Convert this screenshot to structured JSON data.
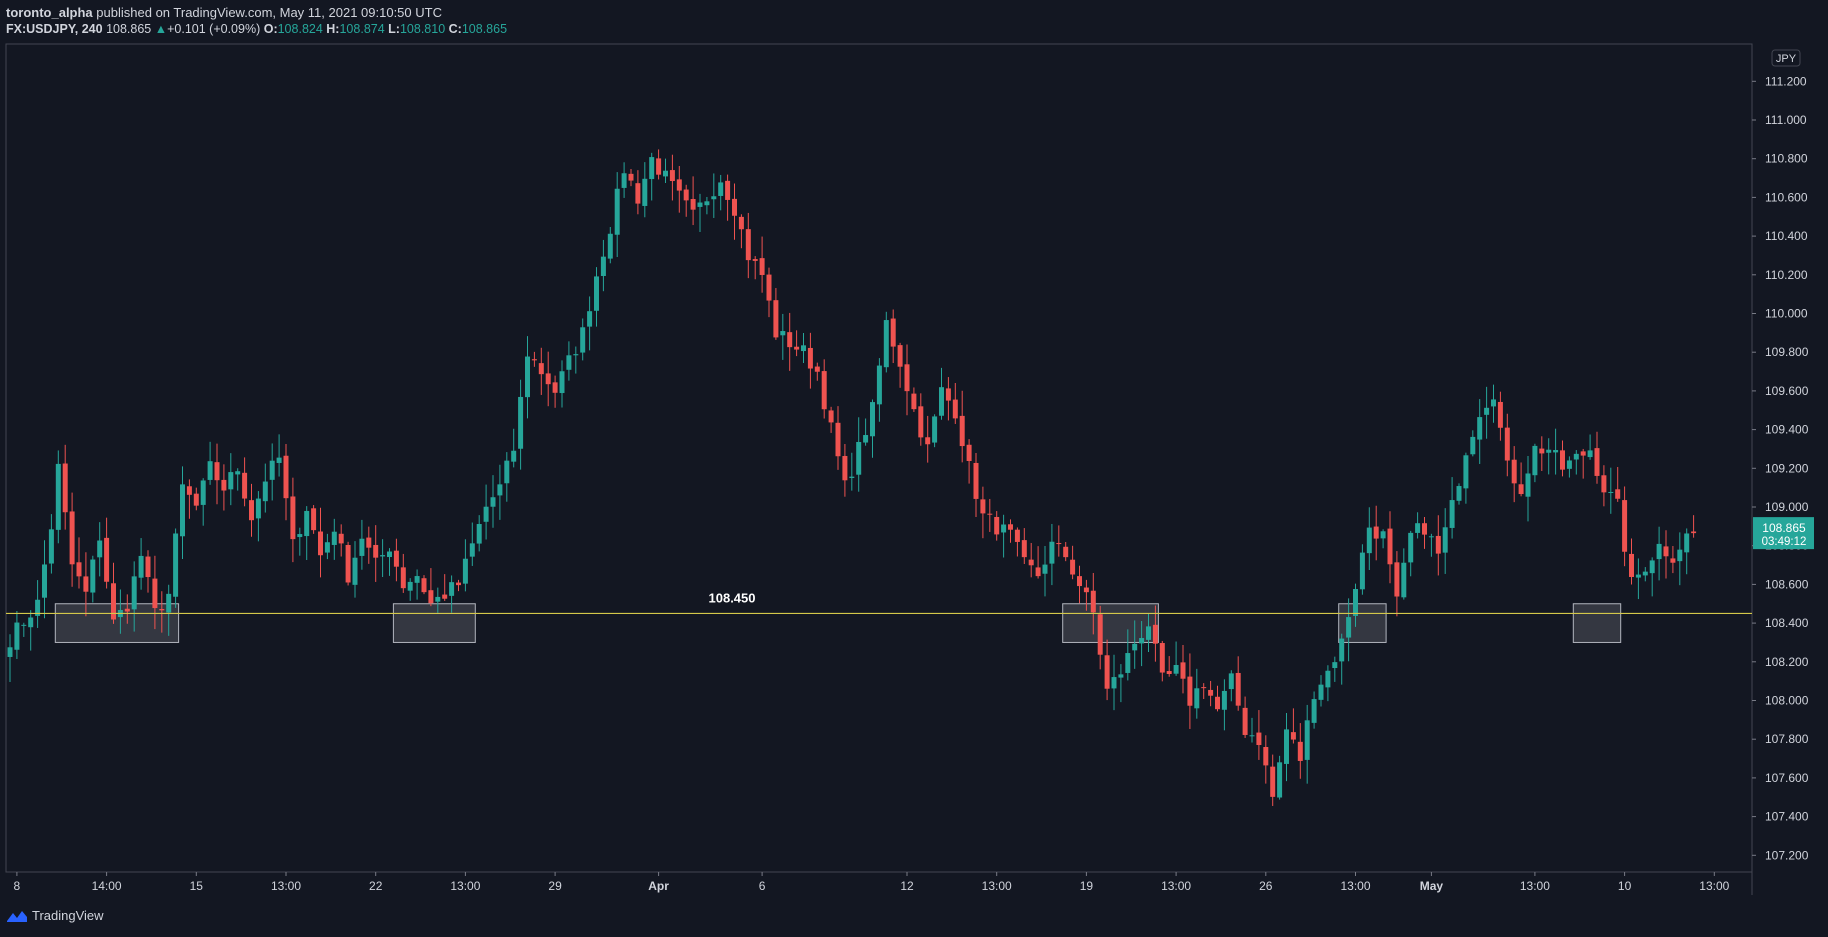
{
  "header": {
    "author": "toronto_alpha",
    "published_text": "published on TradingView.com, May 11, 2021 09:10:50 UTC",
    "symbol": "FX:USDJPY, 240",
    "last_price": "108.865",
    "change_arrow": "▲",
    "change": "+0.101 (+0.09%)",
    "o_label": "O:",
    "o_value": "108.824",
    "h_label": "H:",
    "h_value": "108.874",
    "l_label": "L:",
    "l_value": "108.810",
    "c_label": "C:",
    "c_value": "108.865"
  },
  "footer": {
    "brand": "TradingView",
    "logo_icon": "tradingview-logo-icon"
  },
  "colors": {
    "background": "#131722",
    "up": "#26a69a",
    "down": "#ef5350",
    "level_line": "#d4c84a",
    "box_stroke": "#b2b5be",
    "box_fill": "#ffffff",
    "axis": "#434651"
  },
  "chart_data": {
    "type": "candlestick",
    "symbol": "FX:USDJPY",
    "interval": "240",
    "currency_label": "JPY",
    "ylim": [
      107.1,
      111.3
    ],
    "y_ticks": [
      "107.200",
      "107.400",
      "107.600",
      "107.800",
      "108.000",
      "108.200",
      "108.400",
      "108.600",
      "108.800",
      "109.000",
      "109.200",
      "109.400",
      "109.600",
      "109.800",
      "110.000",
      "110.200",
      "110.400",
      "110.600",
      "110.800",
      "111.000",
      "111.200"
    ],
    "x_ticks": [
      {
        "label": "8",
        "i": 1
      },
      {
        "label": "14:00",
        "i": 14
      },
      {
        "label": "15",
        "i": 27
      },
      {
        "label": "13:00",
        "i": 40
      },
      {
        "label": "22",
        "i": 53
      },
      {
        "label": "13:00",
        "i": 66
      },
      {
        "label": "29",
        "i": 79
      },
      {
        "label": "Apr",
        "i": 94
      },
      {
        "label": "6",
        "i": 109
      },
      {
        "label": "12",
        "i": 130
      },
      {
        "label": "13:00",
        "i": 143
      },
      {
        "label": "19",
        "i": 156
      },
      {
        "label": "13:00",
        "i": 169
      },
      {
        "label": "26",
        "i": 182
      },
      {
        "label": "13:00",
        "i": 195
      },
      {
        "label": "May",
        "i": 206
      },
      {
        "label": "13:00",
        "i": 221
      },
      {
        "label": "10",
        "i": 234
      },
      {
        "label": "13:00",
        "i": 247
      }
    ],
    "horizontal_level": {
      "value": 108.45,
      "label": "108.450"
    },
    "support_boxes": [
      {
        "i_start": 7,
        "i_end": 24,
        "y_low": 108.3,
        "y_high": 108.5
      },
      {
        "i_start": 56,
        "i_end": 67,
        "y_low": 108.3,
        "y_high": 108.5
      },
      {
        "i_start": 153,
        "i_end": 166,
        "y_low": 108.3,
        "y_high": 108.5
      },
      {
        "i_start": 193,
        "i_end": 199,
        "y_low": 108.3,
        "y_high": 108.5
      },
      {
        "i_start": 227,
        "i_end": 233,
        "y_low": 108.3,
        "y_high": 108.5
      }
    ],
    "last_price": {
      "value": 108.865,
      "label": "108.865",
      "countdown": "03:49:12"
    },
    "close_path": [
      [
        0,
        108.32
      ],
      [
        4,
        108.5
      ],
      [
        6,
        108.9
      ],
      [
        7,
        109.2
      ],
      [
        9,
        108.7
      ],
      [
        11,
        108.55
      ],
      [
        13,
        108.85
      ],
      [
        15,
        108.4
      ],
      [
        17,
        108.5
      ],
      [
        19,
        108.75
      ],
      [
        21,
        108.45
      ],
      [
        23,
        108.55
      ],
      [
        25,
        109.1
      ],
      [
        27,
        109.0
      ],
      [
        29,
        109.2
      ],
      [
        31,
        109.1
      ],
      [
        33,
        109.2
      ],
      [
        35,
        108.95
      ],
      [
        37,
        109.15
      ],
      [
        39,
        109.25
      ],
      [
        41,
        108.8
      ],
      [
        43,
        109.0
      ],
      [
        45,
        108.75
      ],
      [
        47,
        108.9
      ],
      [
        49,
        108.65
      ],
      [
        51,
        108.85
      ],
      [
        53,
        108.7
      ],
      [
        55,
        108.8
      ],
      [
        57,
        108.6
      ],
      [
        59,
        108.65
      ],
      [
        61,
        108.5
      ],
      [
        63,
        108.55
      ],
      [
        65,
        108.6
      ],
      [
        67,
        108.8
      ],
      [
        69,
        109.0
      ],
      [
        71,
        109.1
      ],
      [
        73,
        109.3
      ],
      [
        75,
        109.8
      ],
      [
        77,
        109.7
      ],
      [
        79,
        109.6
      ],
      [
        81,
        109.75
      ],
      [
        83,
        109.9
      ],
      [
        85,
        110.2
      ],
      [
        87,
        110.45
      ],
      [
        89,
        110.75
      ],
      [
        91,
        110.6
      ],
      [
        93,
        110.8
      ],
      [
        95,
        110.7
      ],
      [
        97,
        110.6
      ],
      [
        99,
        110.5
      ],
      [
        101,
        110.6
      ],
      [
        103,
        110.7
      ],
      [
        105,
        110.55
      ],
      [
        107,
        110.3
      ],
      [
        109,
        110.2
      ],
      [
        111,
        109.9
      ],
      [
        113,
        109.85
      ],
      [
        115,
        109.8
      ],
      [
        117,
        109.7
      ],
      [
        119,
        109.4
      ],
      [
        121,
        109.1
      ],
      [
        123,
        109.3
      ],
      [
        125,
        109.5
      ],
      [
        127,
        109.95
      ],
      [
        129,
        109.75
      ],
      [
        131,
        109.5
      ],
      [
        133,
        109.3
      ],
      [
        135,
        109.6
      ],
      [
        137,
        109.5
      ],
      [
        139,
        109.2
      ],
      [
        141,
        108.95
      ],
      [
        143,
        108.9
      ],
      [
        145,
        108.85
      ],
      [
        147,
        108.7
      ],
      [
        149,
        108.65
      ],
      [
        151,
        108.8
      ],
      [
        153,
        108.75
      ],
      [
        155,
        108.6
      ],
      [
        157,
        108.45
      ],
      [
        159,
        108.05
      ],
      [
        161,
        108.15
      ],
      [
        163,
        108.3
      ],
      [
        165,
        108.4
      ],
      [
        167,
        108.1
      ],
      [
        169,
        108.15
      ],
      [
        171,
        108.0
      ],
      [
        173,
        108.1
      ],
      [
        175,
        107.95
      ],
      [
        177,
        108.1
      ],
      [
        179,
        107.85
      ],
      [
        181,
        107.8
      ],
      [
        183,
        107.5
      ],
      [
        185,
        107.85
      ],
      [
        187,
        107.7
      ],
      [
        189,
        108.05
      ],
      [
        191,
        108.15
      ],
      [
        193,
        108.3
      ],
      [
        195,
        108.6
      ],
      [
        197,
        108.9
      ],
      [
        199,
        108.85
      ],
      [
        201,
        108.5
      ],
      [
        203,
        108.85
      ],
      [
        205,
        108.9
      ],
      [
        207,
        108.75
      ],
      [
        209,
        109.0
      ],
      [
        211,
        109.3
      ],
      [
        213,
        109.5
      ],
      [
        215,
        109.6
      ],
      [
        217,
        109.2
      ],
      [
        219,
        109.1
      ],
      [
        221,
        109.3
      ],
      [
        223,
        109.3
      ],
      [
        225,
        109.2
      ],
      [
        227,
        109.25
      ],
      [
        229,
        109.3
      ],
      [
        231,
        109.1
      ],
      [
        233,
        109.0
      ],
      [
        235,
        108.6
      ],
      [
        237,
        108.7
      ],
      [
        239,
        108.8
      ],
      [
        241,
        108.75
      ],
      [
        243,
        108.85
      ],
      [
        244,
        108.865
      ]
    ]
  }
}
